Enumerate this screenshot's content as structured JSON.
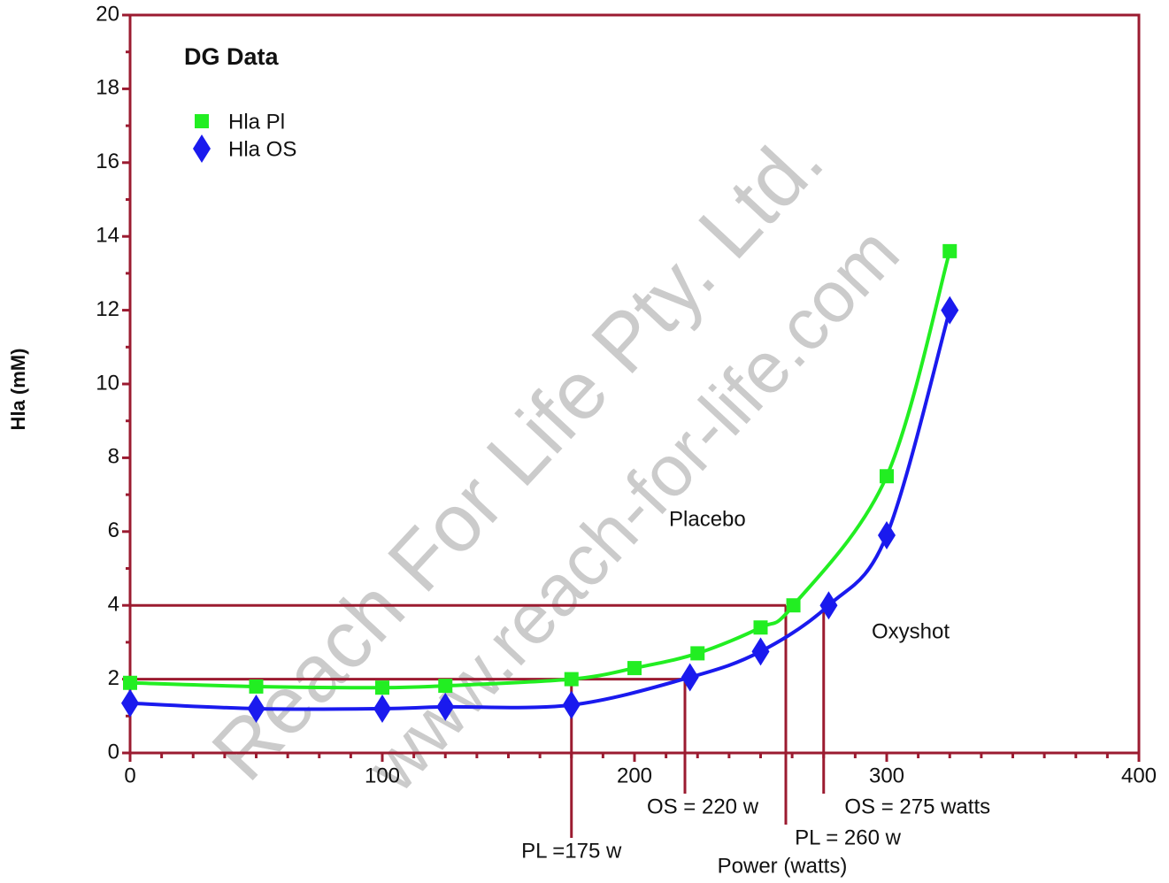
{
  "chart_data": {
    "type": "line",
    "title": "DG Data",
    "xlabel": "Power (watts)",
    "ylabel": "Hla (mM)",
    "xlim": [
      0,
      400
    ],
    "ylim": [
      0,
      20
    ],
    "xticks": [
      0,
      100,
      200,
      300,
      400
    ],
    "yticks": [
      0,
      2,
      4,
      6,
      8,
      10,
      12,
      14,
      16,
      18,
      20
    ],
    "legend": "top-left",
    "series": [
      {
        "name": "Hla Pl",
        "color": "#22ee22",
        "marker": "square",
        "x": [
          0,
          50,
          100,
          125,
          175,
          200,
          225,
          250,
          263,
          300,
          325
        ],
        "values": [
          1.9,
          1.8,
          1.77,
          1.82,
          2.0,
          2.3,
          2.7,
          3.4,
          4.0,
          7.5,
          13.6
        ]
      },
      {
        "name": "Hla OS",
        "color": "#1a1aee",
        "marker": "diamond",
        "x": [
          0,
          50,
          100,
          125,
          175,
          222,
          250,
          277,
          300,
          325
        ],
        "values": [
          1.35,
          1.2,
          1.2,
          1.25,
          1.3,
          2.05,
          2.75,
          4.0,
          5.9,
          12.0
        ]
      }
    ],
    "hlines": [
      {
        "y": 4,
        "x_end": 260
      },
      {
        "y": 2,
        "x_end": 220
      }
    ],
    "vlines": [
      {
        "x": 175,
        "y_start": 2,
        "label": "PL =175 w"
      },
      {
        "x": 220,
        "y_start": 2,
        "label": "OS = 220 w"
      },
      {
        "x": 260,
        "y_start": 4,
        "label": "PL = 260 w"
      },
      {
        "x": 275,
        "y_start": 4,
        "label": "OS = 275 watts"
      }
    ],
    "annotations": [
      "Placebo",
      "Oxyshot"
    ],
    "watermark": [
      "Reach For Life Pty. Ltd.",
      "www.reach-for-life.com"
    ]
  }
}
